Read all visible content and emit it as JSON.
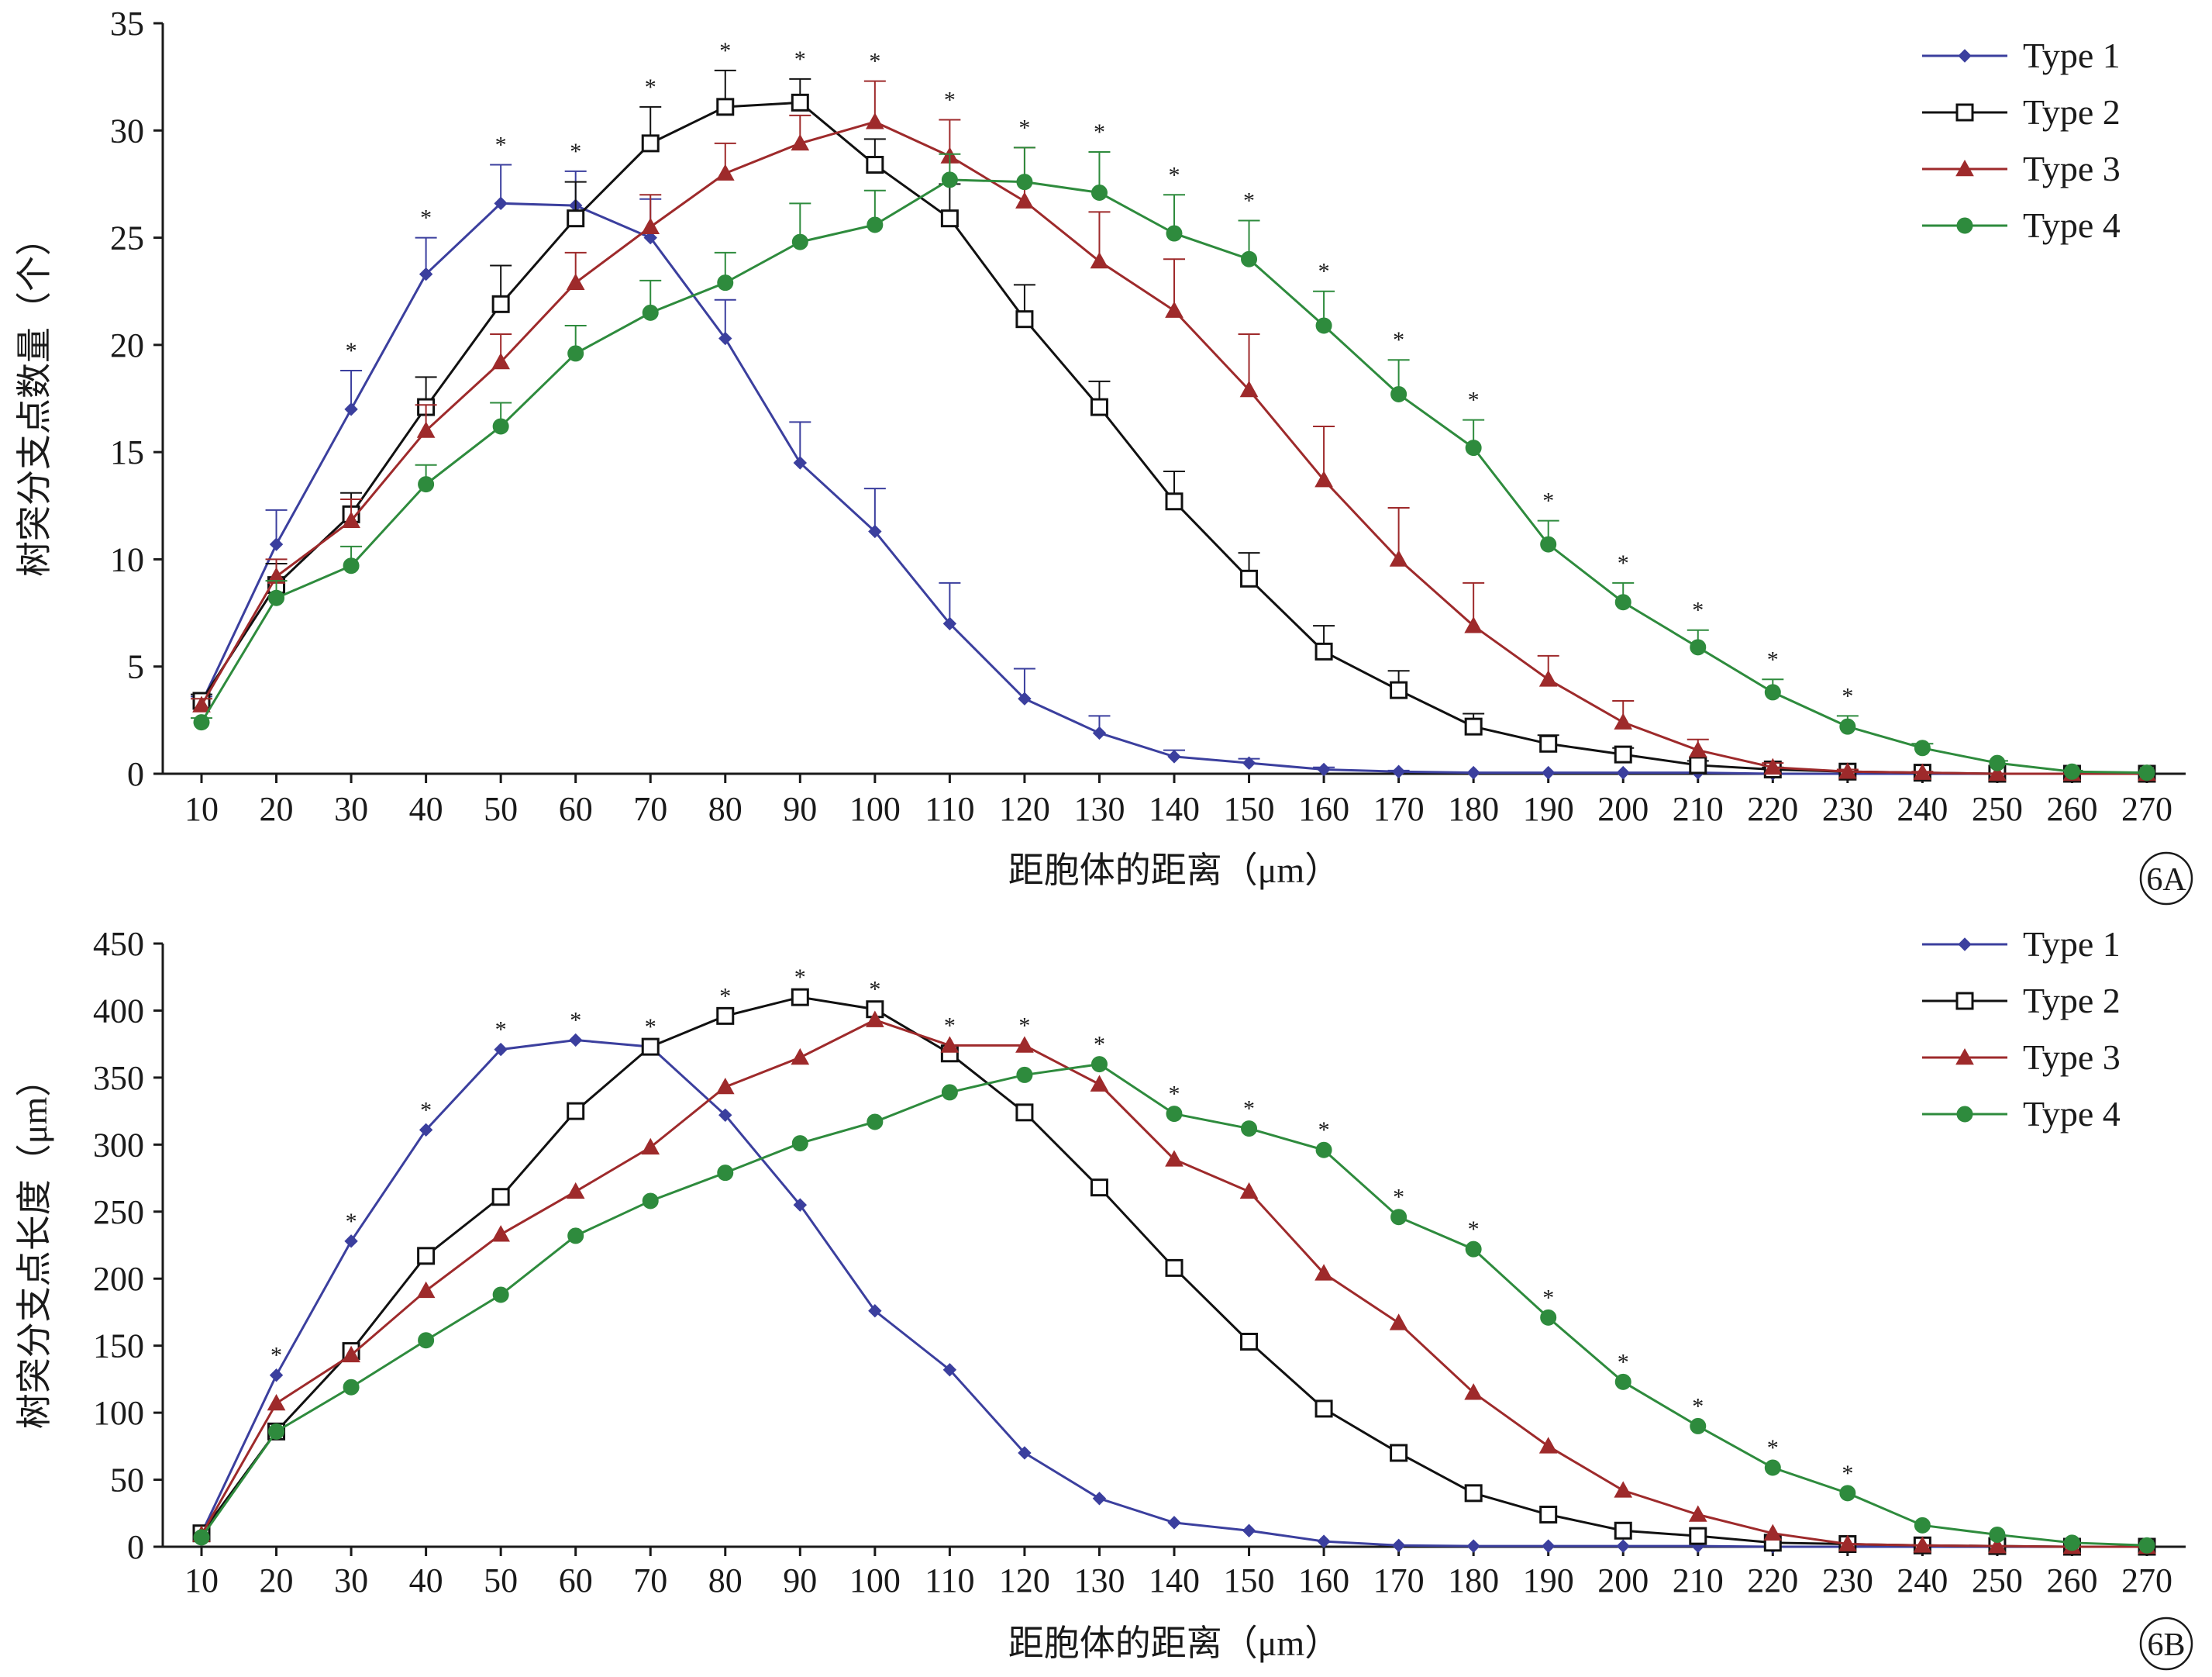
{
  "colors": {
    "axis": "#1a1a1a",
    "type1": "#3b3f9e",
    "type2": "#111111",
    "type3": "#9e2a2b",
    "type4": "#2e8b3d"
  },
  "chart_data": [
    {
      "type": "line",
      "panel_label": "6A",
      "xlabel": "距胞体的距离（μm）",
      "ylabel": "树突分支点数量（个）",
      "x": [
        10,
        20,
        30,
        40,
        50,
        60,
        70,
        80,
        90,
        100,
        110,
        120,
        130,
        140,
        150,
        160,
        170,
        180,
        190,
        200,
        210,
        220,
        230,
        240,
        250,
        260,
        270
      ],
      "xlim": [
        10,
        270
      ],
      "ylim": [
        0,
        35
      ],
      "yticks": [
        0,
        5,
        10,
        15,
        20,
        25,
        30,
        35
      ],
      "legend": "top-right",
      "legend_entries": [
        "Type 1",
        "Type 2",
        "Type 3",
        "Type 4"
      ],
      "significance_marker": "*",
      "significant_x": [
        30,
        40,
        50,
        60,
        70,
        80,
        90,
        100,
        110,
        120,
        130,
        140,
        150,
        160,
        170,
        180,
        190,
        200,
        210,
        220,
        230
      ],
      "series": [
        {
          "name": "Type 1",
          "marker": "diamond",
          "values": [
            3.3,
            10.7,
            17.0,
            23.3,
            26.6,
            26.5,
            25.0,
            20.3,
            14.5,
            11.3,
            7.0,
            3.5,
            1.9,
            0.8,
            0.5,
            0.2,
            0.1,
            0.05,
            0.05,
            0.05,
            0.05,
            0,
            0,
            0,
            0,
            0,
            0
          ],
          "error": [
            0.3,
            1.6,
            1.8,
            1.7,
            1.8,
            1.6,
            1.8,
            1.8,
            1.9,
            2.0,
            1.9,
            1.4,
            0.8,
            0.3,
            0.2,
            0.1,
            0.05,
            0,
            0,
            0,
            0,
            0,
            0,
            0,
            0,
            0,
            0
          ]
        },
        {
          "name": "Type 2",
          "marker": "square",
          "values": [
            3.4,
            8.8,
            12.1,
            17.1,
            21.9,
            25.9,
            29.4,
            31.1,
            31.3,
            28.4,
            25.9,
            21.2,
            17.1,
            12.7,
            9.1,
            5.7,
            3.9,
            2.2,
            1.4,
            0.9,
            0.4,
            0.2,
            0.1,
            0.05,
            0,
            0,
            0
          ],
          "error": [
            0.3,
            1.0,
            1.0,
            1.4,
            1.8,
            1.7,
            1.7,
            1.7,
            1.1,
            1.2,
            1.6,
            1.6,
            1.2,
            1.4,
            1.2,
            1.2,
            0.9,
            0.6,
            0.4,
            0.3,
            0.2,
            0.1,
            0.05,
            0,
            0,
            0,
            0
          ]
        },
        {
          "name": "Type 3",
          "marker": "triangle",
          "values": [
            3.2,
            9.2,
            11.8,
            16.0,
            19.2,
            22.9,
            25.5,
            28.0,
            29.4,
            30.4,
            28.8,
            26.7,
            23.9,
            21.6,
            17.9,
            13.7,
            10.0,
            6.9,
            4.4,
            2.4,
            1.1,
            0.3,
            0.1,
            0.05,
            0,
            0,
            0
          ],
          "error": [
            0.3,
            0.8,
            1.0,
            1.2,
            1.3,
            1.4,
            1.5,
            1.4,
            1.3,
            1.9,
            1.7,
            2.5,
            2.3,
            2.4,
            2.6,
            2.5,
            2.4,
            2.0,
            1.1,
            1.0,
            0.5,
            0.2,
            0.1,
            0.05,
            0,
            0,
            0
          ]
        },
        {
          "name": "Type 4",
          "marker": "circle",
          "values": [
            2.4,
            8.2,
            9.7,
            13.5,
            16.2,
            19.6,
            21.5,
            22.9,
            24.8,
            25.6,
            27.7,
            27.6,
            27.1,
            25.2,
            24.0,
            20.9,
            17.7,
            15.2,
            10.7,
            8.0,
            5.9,
            3.8,
            2.2,
            1.2,
            0.5,
            0.1,
            0.05
          ],
          "error": [
            0.2,
            0.8,
            0.9,
            0.9,
            1.1,
            1.3,
            1.5,
            1.4,
            1.8,
            1.6,
            1.2,
            1.6,
            1.9,
            1.8,
            1.8,
            1.6,
            1.6,
            1.3,
            1.1,
            0.9,
            0.8,
            0.6,
            0.5,
            0.2,
            0.1,
            0.05,
            0
          ]
        }
      ]
    },
    {
      "type": "line",
      "panel_label": "6B",
      "xlabel": "距胞体的距离（μm）",
      "ylabel": "树突分支点长度（μm）",
      "x": [
        10,
        20,
        30,
        40,
        50,
        60,
        70,
        80,
        90,
        100,
        110,
        120,
        130,
        140,
        150,
        160,
        170,
        180,
        190,
        200,
        210,
        220,
        230,
        240,
        250,
        260,
        270
      ],
      "xlim": [
        10,
        270
      ],
      "ylim": [
        0,
        450
      ],
      "yticks": [
        0,
        50,
        100,
        150,
        200,
        250,
        300,
        350,
        400,
        450
      ],
      "legend": "top-right",
      "legend_entries": [
        "Type 1",
        "Type 2",
        "Type 3",
        "Type 4"
      ],
      "significance_marker": "*",
      "significant_x": [
        20,
        30,
        40,
        50,
        60,
        70,
        80,
        90,
        100,
        110,
        120,
        130,
        140,
        150,
        160,
        170,
        180,
        190,
        200,
        210,
        220,
        230
      ],
      "series": [
        {
          "name": "Type 1",
          "marker": "diamond",
          "values": [
            10,
            128,
            228,
            311,
            371,
            378,
            373,
            322,
            255,
            176,
            132,
            70,
            36,
            18,
            12,
            4,
            1,
            0.5,
            0.5,
            0.5,
            0.5,
            0,
            0,
            0,
            0,
            0,
            0
          ]
        },
        {
          "name": "Type 2",
          "marker": "square",
          "values": [
            10,
            86,
            146,
            217,
            261,
            325,
            373,
            396,
            410,
            401,
            368,
            324,
            268,
            208,
            153,
            103,
            70,
            40,
            24,
            12,
            8,
            3,
            2,
            1,
            0.5,
            0,
            0
          ]
        },
        {
          "name": "Type 3",
          "marker": "triangle",
          "values": [
            9,
            107,
            143,
            191,
            233,
            265,
            298,
            343,
            365,
            393,
            374,
            374,
            345,
            289,
            265,
            204,
            167,
            115,
            75,
            42,
            24,
            10,
            2,
            1,
            0.5,
            0,
            0
          ]
        },
        {
          "name": "Type 4",
          "marker": "circle",
          "values": [
            7,
            86,
            119,
            154,
            188,
            232,
            258,
            279,
            301,
            317,
            339,
            352,
            360,
            323,
            312,
            296,
            246,
            222,
            171,
            123,
            90,
            59,
            40,
            16,
            9,
            3,
            1
          ]
        }
      ]
    }
  ]
}
